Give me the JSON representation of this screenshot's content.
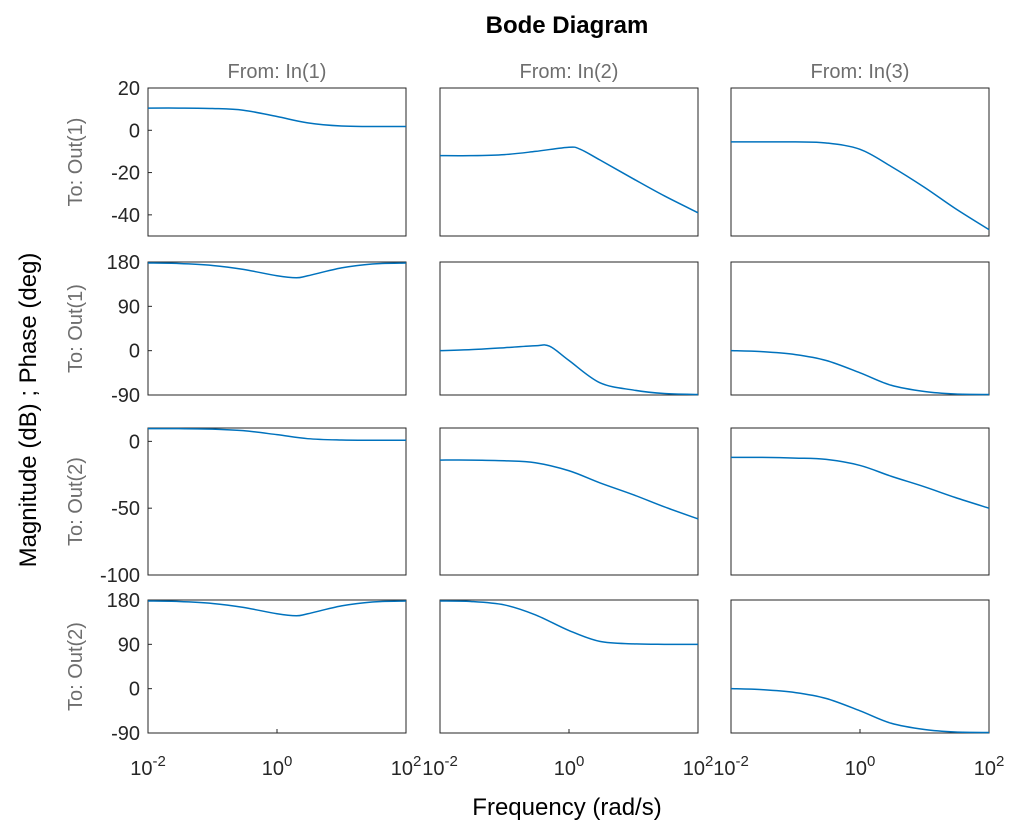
{
  "chart_data": {
    "type": "line",
    "title": "Bode Diagram",
    "xlabel": "Frequency  (rad/s)",
    "ylabel": "Magnitude (dB) ; Phase (deg)",
    "xscale": "log",
    "xlim": [
      0.01,
      100
    ],
    "x_ticks": [
      {
        "base": "10",
        "exp": "-2"
      },
      {
        "base": "10",
        "exp": "0"
      },
      {
        "base": "10",
        "exp": "2"
      }
    ],
    "line_color": "#0072BD",
    "columns": [
      "From: In(1)",
      "From: In(2)",
      "From: In(3)"
    ],
    "rows": [
      {
        "label": "To: Out(1)",
        "kind": "magnitude",
        "ylim": [
          -50,
          20
        ],
        "yticks": [
          "20",
          "0",
          "-20",
          "-40"
        ],
        "ytick_values": [
          20,
          0,
          -20,
          -40
        ],
        "panels": [
          {
            "x": [
              0.01,
              0.03,
              0.1,
              0.3,
              1,
              3,
              10,
              30,
              100
            ],
            "y": [
              10.5,
              10.5,
              10.3,
              9.5,
              6.5,
              3.5,
              2,
              1.8,
              1.8
            ]
          },
          {
            "x": [
              0.01,
              0.03,
              0.1,
              0.3,
              1,
              1.5,
              3,
              10,
              30,
              100
            ],
            "y": [
              -12,
              -12,
              -11.5,
              -10,
              -8,
              -9,
              -14,
              -23,
              -31,
              -39
            ]
          },
          {
            "x": [
              0.01,
              0.03,
              0.1,
              0.3,
              1,
              3,
              10,
              30,
              100
            ],
            "y": [
              -5.5,
              -5.5,
              -5.5,
              -6,
              -9,
              -17,
              -27,
              -37,
              -47
            ]
          }
        ]
      },
      {
        "label": "To: Out(1)",
        "kind": "phase",
        "ylim": [
          -90,
          180
        ],
        "yticks": [
          "180",
          "90",
          "0",
          "-90"
        ],
        "ytick_values": [
          180,
          90,
          0,
          -90
        ],
        "panels": [
          {
            "x": [
              0.01,
              0.03,
              0.1,
              0.3,
              1,
              2,
              3,
              10,
              30,
              100
            ],
            "y": [
              178,
              177,
              173,
              165,
              152,
              148,
              152,
              168,
              176,
              178
            ]
          },
          {
            "x": [
              0.01,
              0.03,
              0.1,
              0.3,
              0.5,
              1,
              3,
              10,
              30,
              100
            ],
            "y": [
              0,
              2,
              6,
              10,
              9,
              -20,
              -65,
              -80,
              -87,
              -89
            ]
          },
          {
            "x": [
              0.01,
              0.03,
              0.1,
              0.3,
              1,
              3,
              10,
              30,
              100
            ],
            "y": [
              0,
              -2,
              -8,
              -20,
              -45,
              -70,
              -83,
              -88,
              -89
            ]
          }
        ]
      },
      {
        "label": "To: Out(2)",
        "kind": "magnitude",
        "ylim": [
          -100,
          10
        ],
        "yticks": [
          "0",
          "-50",
          "-100"
        ],
        "ytick_values": [
          0,
          -50,
          -100
        ],
        "panels": [
          {
            "x": [
              0.01,
              0.03,
              0.1,
              0.3,
              1,
              3,
              10,
              30,
              100
            ],
            "y": [
              9.5,
              9.5,
              9.2,
              8,
              5,
              2,
              1,
              0.8,
              0.8
            ]
          },
          {
            "x": [
              0.01,
              0.03,
              0.1,
              0.3,
              1,
              3,
              10,
              30,
              100
            ],
            "y": [
              -14,
              -14,
              -14.5,
              -16,
              -22,
              -31,
              -40,
              -49,
              -58
            ]
          },
          {
            "x": [
              0.01,
              0.03,
              0.1,
              0.3,
              1,
              3,
              10,
              30,
              100
            ],
            "y": [
              -12,
              -12,
              -12.5,
              -13.5,
              -18,
              -26,
              -34,
              -42,
              -50
            ]
          }
        ]
      },
      {
        "label": "To: Out(2)",
        "kind": "phase",
        "ylim": [
          -90,
          180
        ],
        "yticks": [
          "180",
          "90",
          "0",
          "-90"
        ],
        "ytick_values": [
          180,
          90,
          0,
          -90
        ],
        "panels": [
          {
            "x": [
              0.01,
              0.03,
              0.1,
              0.3,
              1,
              2,
              3,
              10,
              30,
              100
            ],
            "y": [
              178,
              177,
              173,
              165,
              152,
              148,
              152,
              168,
              176,
              178
            ]
          },
          {
            "x": [
              0.01,
              0.03,
              0.1,
              0.3,
              1,
              3,
              10,
              30,
              100
            ],
            "y": [
              178,
              177,
              170,
              150,
              118,
              96,
              91,
              90,
              90
            ]
          },
          {
            "x": [
              0.01,
              0.03,
              0.1,
              0.3,
              1,
              3,
              10,
              30,
              100
            ],
            "y": [
              0,
              -2,
              -8,
              -20,
              -45,
              -70,
              -83,
              -88,
              -89
            ]
          }
        ]
      }
    ]
  }
}
